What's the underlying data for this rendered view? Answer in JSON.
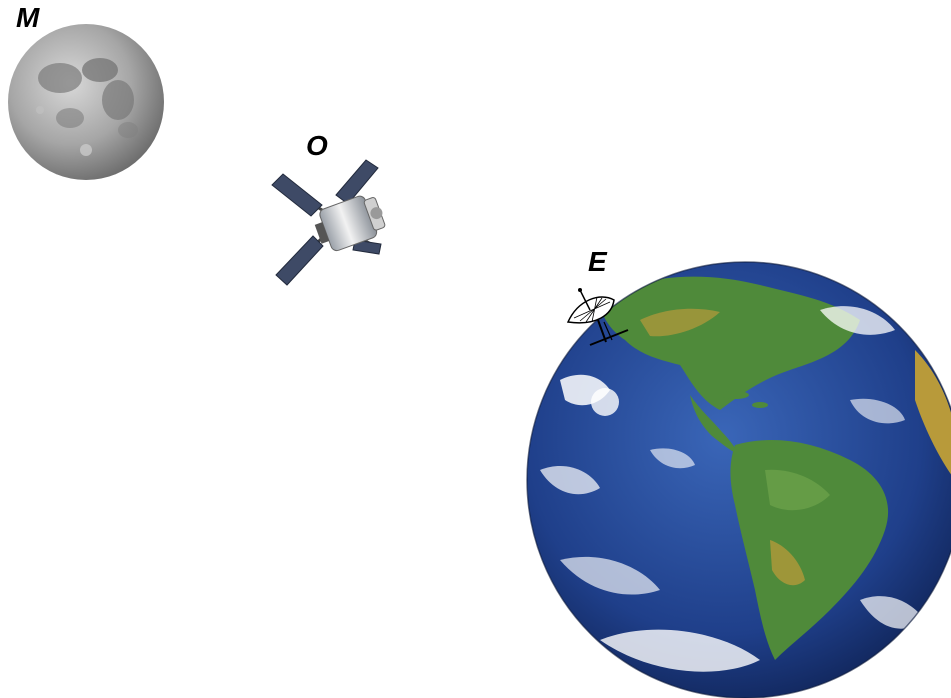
{
  "labels": {
    "moon": "M",
    "spacecraft": "O",
    "earth": "E"
  },
  "icons": {
    "moon": "moon-icon",
    "spacecraft": "spacecraft-icon",
    "earth": "earth-icon",
    "antenna": "satellite-dish-icon"
  },
  "colors": {
    "background": "#ffffff",
    "ocean": "#1f3f8a",
    "land": "#4f8a3a",
    "moon": "#9a9a9a",
    "text": "#000000"
  }
}
